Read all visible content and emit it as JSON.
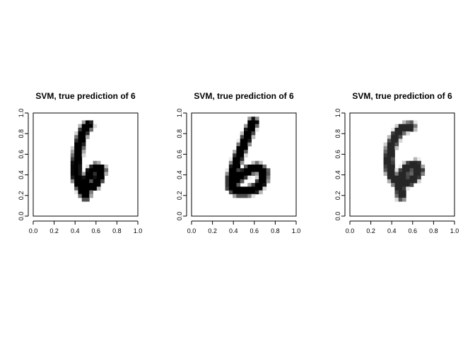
{
  "chart_data": [
    {
      "type": "heatmap",
      "title": "SVM, true prediction of 6",
      "xlim": [
        0,
        1
      ],
      "ylim": [
        0,
        1
      ],
      "x_ticks": [
        "0.0",
        "0.2",
        "0.4",
        "0.6",
        "0.8",
        "1.0"
      ],
      "y_ticks": [
        "0.0",
        "0.2",
        "0.4",
        "0.6",
        "0.8",
        "1.0"
      ],
      "colormap": "grayscale (white = 0, black = 1)",
      "strokes": [
        {
          "points": [
            [
              0.53,
              0.88
            ],
            [
              0.5,
              0.86
            ],
            [
              0.46,
              0.77
            ],
            [
              0.43,
              0.64
            ],
            [
              0.41,
              0.51
            ],
            [
              0.41,
              0.39
            ],
            [
              0.44,
              0.31
            ],
            [
              0.47,
              0.25
            ],
            [
              0.5,
              0.2
            ]
          ],
          "ink": 1.0
        },
        {
          "points": [
            [
              0.45,
              0.3
            ],
            [
              0.52,
              0.27
            ],
            [
              0.58,
              0.3
            ],
            [
              0.63,
              0.37
            ],
            [
              0.65,
              0.45
            ],
            [
              0.6,
              0.47
            ],
            [
              0.55,
              0.43
            ],
            [
              0.5,
              0.33
            ]
          ],
          "ink": 1.0
        }
      ]
    },
    {
      "type": "heatmap",
      "title": "SVM, true prediction of 6",
      "xlim": [
        0,
        1
      ],
      "ylim": [
        0,
        1
      ],
      "x_ticks": [
        "0.0",
        "0.2",
        "0.4",
        "0.6",
        "0.8",
        "1.0"
      ],
      "y_ticks": [
        "0.0",
        "0.2",
        "0.4",
        "0.6",
        "0.8",
        "1.0"
      ],
      "colormap": "grayscale (white = 0, black = 1)",
      "strokes": [
        {
          "points": [
            [
              0.59,
              0.91
            ],
            [
              0.55,
              0.82
            ],
            [
              0.5,
              0.7
            ],
            [
              0.45,
              0.58
            ],
            [
              0.41,
              0.47
            ],
            [
              0.38,
              0.37
            ],
            [
              0.38,
              0.28
            ],
            [
              0.44,
              0.24
            ],
            [
              0.53,
              0.24
            ],
            [
              0.62,
              0.27
            ],
            [
              0.68,
              0.34
            ],
            [
              0.69,
              0.43
            ],
            [
              0.63,
              0.47
            ],
            [
              0.55,
              0.45
            ],
            [
              0.47,
              0.39
            ],
            [
              0.41,
              0.33
            ]
          ],
          "ink": 1.0
        }
      ]
    },
    {
      "type": "heatmap",
      "title": "SVM, true prediction of 6",
      "xlim": [
        0,
        1
      ],
      "ylim": [
        0,
        1
      ],
      "x_ticks": [
        "0.0",
        "0.2",
        "0.4",
        "0.6",
        "0.8",
        "1.0"
      ],
      "y_ticks": [
        "0.0",
        "0.2",
        "0.4",
        "0.6",
        "0.8",
        "1.0"
      ],
      "colormap": "grayscale (white = 0, black = 1)",
      "strokes": [
        {
          "points": [
            [
              0.58,
              0.87
            ],
            [
              0.5,
              0.85
            ],
            [
              0.44,
              0.78
            ],
            [
              0.39,
              0.67
            ],
            [
              0.37,
              0.55
            ],
            [
              0.38,
              0.45
            ],
            [
              0.41,
              0.38
            ],
            [
              0.44,
              0.34
            ],
            [
              0.5,
              0.32
            ],
            [
              0.56,
              0.33
            ],
            [
              0.62,
              0.38
            ],
            [
              0.66,
              0.44
            ],
            [
              0.63,
              0.5
            ],
            [
              0.56,
              0.48
            ],
            [
              0.51,
              0.42
            ],
            [
              0.49,
              0.35
            ],
            [
              0.48,
              0.27
            ],
            [
              0.49,
              0.2
            ]
          ],
          "ink": 0.85
        }
      ]
    }
  ]
}
